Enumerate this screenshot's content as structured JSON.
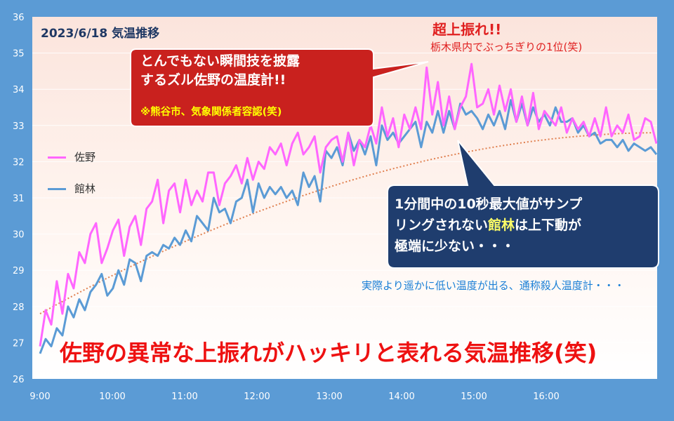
{
  "chart_data": {
    "type": "line",
    "title": "2023/6/18  気温推移",
    "ylim": [
      26,
      36
    ],
    "yticks": [
      "26",
      "27",
      "28",
      "29",
      "30",
      "31",
      "32",
      "33",
      "34",
      "35",
      "36"
    ],
    "xticks": [
      "9:00",
      "10:00",
      "11:00",
      "12:00",
      "13:00",
      "14:00",
      "15:00",
      "16:00"
    ],
    "x_start_hour": 9,
    "x_end_hour": 16.93,
    "series": [
      {
        "name": "佐野",
        "color": "#ff66ff",
        "values": [
          26.9,
          27.9,
          27.5,
          28.7,
          27.8,
          28.9,
          28.5,
          29.5,
          29.2,
          30.0,
          30.3,
          29.2,
          29.6,
          30.1,
          30.4,
          29.4,
          30.2,
          30.5,
          29.7,
          30.7,
          30.9,
          31.5,
          30.3,
          31.2,
          31.4,
          30.6,
          31.5,
          30.8,
          31.2,
          30.9,
          31.7,
          31.7,
          30.8,
          31.4,
          31.6,
          31.9,
          31.4,
          32.1,
          31.5,
          32.0,
          31.8,
          32.4,
          32.2,
          32.5,
          31.9,
          32.5,
          32.8,
          32.2,
          32.4,
          32.7,
          31.7,
          32.4,
          32.6,
          32.7,
          32.0,
          32.8,
          31.9,
          32.6,
          32.4,
          33.0,
          32.5,
          33.5,
          32.7,
          33.2,
          32.4,
          33.3,
          32.9,
          33.5,
          32.9,
          34.6,
          33.3,
          34.2,
          33.0,
          33.8,
          32.9,
          33.5,
          33.8,
          34.7,
          33.5,
          33.6,
          34.0,
          33.3,
          34.1,
          33.4,
          34.0,
          33.1,
          33.8,
          33.0,
          33.9,
          32.9,
          33.4,
          33.2,
          33.0,
          33.5,
          32.8,
          33.2,
          32.9,
          33.1,
          32.7,
          33.2,
          32.7,
          33.5,
          32.7,
          33.0,
          32.8,
          33.3,
          32.6,
          32.7,
          33.2,
          33.1,
          32.5
        ]
      },
      {
        "name": "館林",
        "color": "#5b9bd5",
        "values": [
          26.7,
          27.1,
          26.9,
          27.4,
          27.2,
          28.0,
          27.7,
          28.2,
          27.9,
          28.4,
          28.6,
          28.9,
          28.3,
          28.5,
          29.0,
          28.6,
          29.3,
          29.2,
          28.7,
          29.4,
          29.5,
          29.4,
          29.7,
          29.6,
          29.9,
          29.7,
          30.1,
          29.8,
          30.5,
          30.3,
          30.1,
          31.0,
          30.6,
          30.7,
          30.3,
          30.9,
          31.0,
          31.5,
          30.6,
          31.4,
          31.0,
          31.3,
          31.1,
          31.3,
          31.0,
          31.2,
          30.8,
          31.7,
          31.3,
          31.6,
          30.9,
          32.3,
          32.1,
          32.4,
          31.9,
          32.8,
          32.3,
          32.6,
          32.2,
          32.7,
          31.9,
          33.0,
          32.6,
          32.8,
          32.5,
          32.7,
          32.9,
          33.1,
          32.4,
          33.1,
          32.8,
          33.4,
          32.8,
          33.4,
          32.9,
          33.6,
          33.3,
          33.4,
          33.2,
          32.9,
          33.3,
          33.0,
          33.4,
          32.9,
          33.7,
          33.1,
          33.6,
          33.0,
          33.5,
          33.1,
          33.3,
          33.0,
          33.5,
          33.1,
          33.1,
          33.2,
          32.8,
          33.0,
          32.7,
          32.8,
          32.5,
          32.6,
          32.6,
          32.4,
          32.6,
          32.3,
          32.5,
          32.4,
          32.3,
          32.4,
          32.2
        ]
      }
    ],
    "trendline": {
      "style": "dotted",
      "color": "#e08050",
      "start": 27.8,
      "end": 32.8
    },
    "legend_placement": "left"
  },
  "annotations": {
    "callout_red_line1": "とんでもない瞬間技を披露",
    "callout_red_line2": "するズル佐野の温度計!!",
    "callout_red_note": "※熊谷市、気象関係者容認(笑)",
    "spike_title": "超上振れ!!",
    "spike_sub": "栃木県内でぶっちぎりの1位(笑)",
    "callout_blue_line1": "1分間中の10秒最大値がサンプ",
    "callout_blue_line2a": "リングされない",
    "callout_blue_line2b": "館林",
    "callout_blue_line2c": "は上下動が",
    "callout_blue_line3": "極端に少ない・・・",
    "blue_note": "実際より遥かに低い温度が出る、通称殺人温度計・・・",
    "big_caption": "佐野の異常な上振れがハッキリと表れる気温推移(笑)"
  }
}
